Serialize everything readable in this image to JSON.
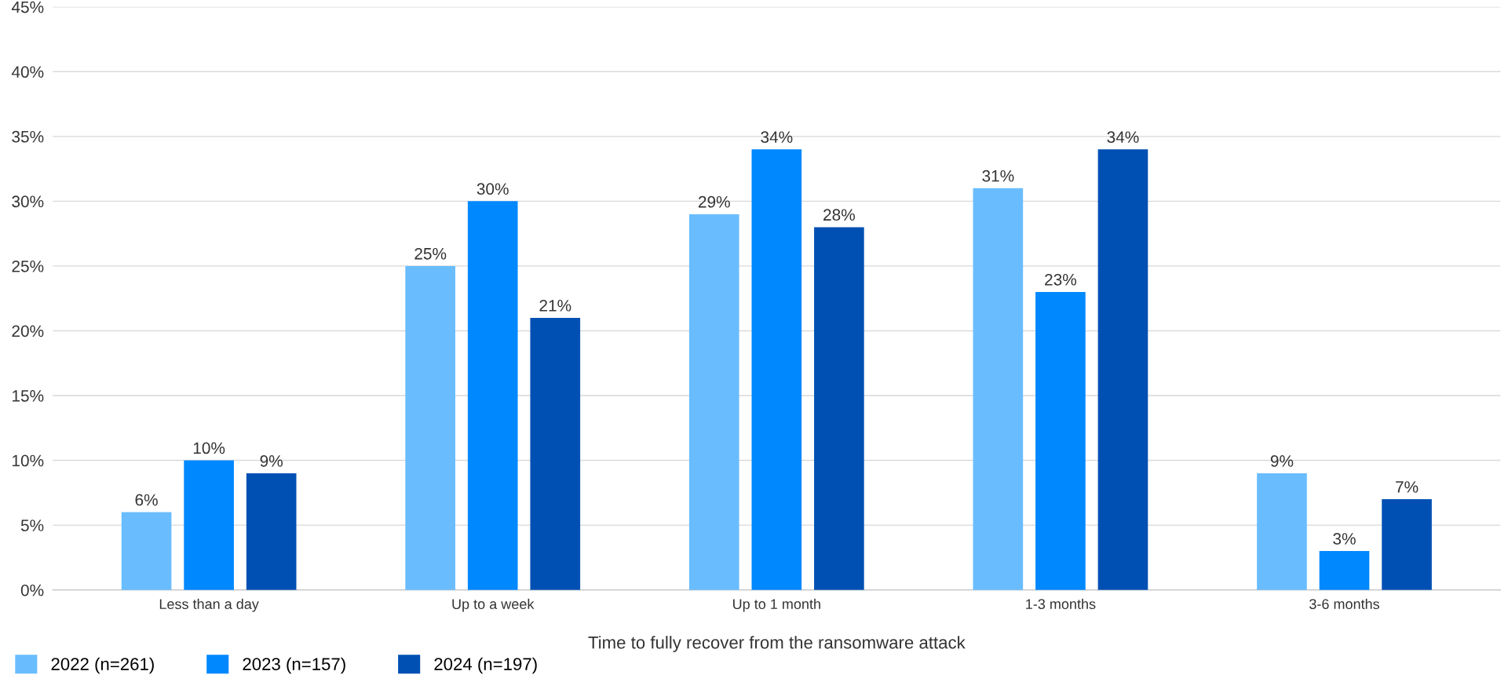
{
  "chart_data": {
    "type": "bar",
    "xlabel": "Time to fully recover from the ransomware attack",
    "categories": [
      "Less than a day",
      "Up to a week",
      "Up to 1 month",
      "1-3 months",
      "3-6 months"
    ],
    "series": [
      {
        "name": "2022 (n=261)",
        "color": "#69bdff",
        "values": [
          6,
          25,
          29,
          31,
          9
        ],
        "value_labels": [
          "6%",
          "25%",
          "29%",
          "31%",
          "9%"
        ]
      },
      {
        "name": "2023 (n=157)",
        "color": "#0088ff",
        "values": [
          10,
          30,
          34,
          23,
          3
        ],
        "value_labels": [
          "10%",
          "30%",
          "34%",
          "23%",
          "3%"
        ]
      },
      {
        "name": "2024 (n=197)",
        "color": "#0050b4",
        "values": [
          9,
          21,
          28,
          34,
          7
        ],
        "value_labels": [
          "9%",
          "21%",
          "28%",
          "34%",
          "7%"
        ]
      }
    ],
    "ylim": [
      0,
      45
    ],
    "yticks": [
      {
        "value": 0,
        "label": "0%"
      },
      {
        "value": 5,
        "label": "5%"
      },
      {
        "value": 10,
        "label": "10%"
      },
      {
        "value": 15,
        "label": "15%"
      },
      {
        "value": 20,
        "label": "20%"
      },
      {
        "value": 25,
        "label": "25%"
      },
      {
        "value": 30,
        "label": "30%"
      },
      {
        "value": 35,
        "label": "35%"
      },
      {
        "value": 40,
        "label": "40%"
      },
      {
        "value": 45,
        "label": "45%"
      }
    ],
    "grid": "y",
    "legend": "bottom left"
  }
}
